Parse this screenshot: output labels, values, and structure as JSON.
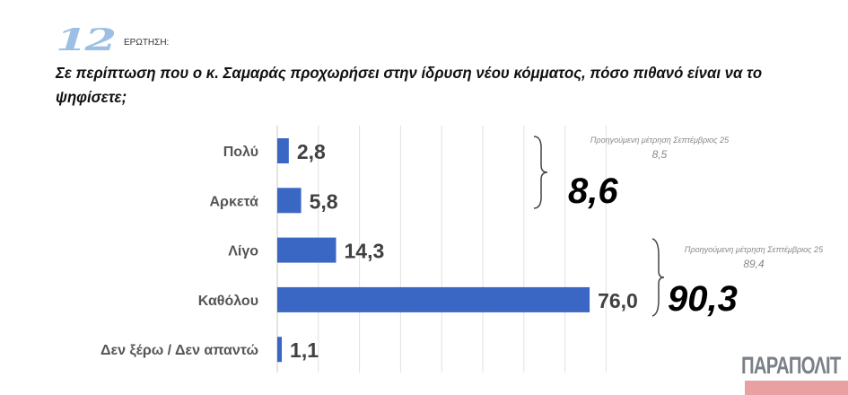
{
  "header": {
    "question_number": "12",
    "question_label": "ΕΡΩΤΗΣΗ:"
  },
  "title": "Σε περίπτωση που ο κ. Σαμαράς προχωρήσει στην ίδρυση νέου κόμματος, πόσο πιθανό είναι να το ψηφίσετε;",
  "chart_data": {
    "type": "bar",
    "orientation": "horizontal",
    "categories": [
      "Πολύ",
      "Αρκετά",
      "Λίγο",
      "Καθόλου",
      "Δεν ξέρω / Δεν απαντώ"
    ],
    "values": [
      2.8,
      5.8,
      14.3,
      76.0,
      1.1
    ],
    "value_labels": [
      "2,8",
      "5,8",
      "14,3",
      "76,0",
      "1,1"
    ],
    "xlim": [
      0,
      80
    ],
    "grid": true,
    "bar_color": "#3a66c4"
  },
  "annotations": [
    {
      "total": "8,6",
      "previous_label": "Προηγούμενη μέτρηση Σεπτέμβριος 25",
      "previous_value": "8,5"
    },
    {
      "total": "90,3",
      "previous_label": "Προηγούμενη μέτρηση Σεπτέμβριος 25",
      "previous_value": "89,4"
    }
  ],
  "logo": "ΠΑΡΑΠΟΛΙΤ"
}
